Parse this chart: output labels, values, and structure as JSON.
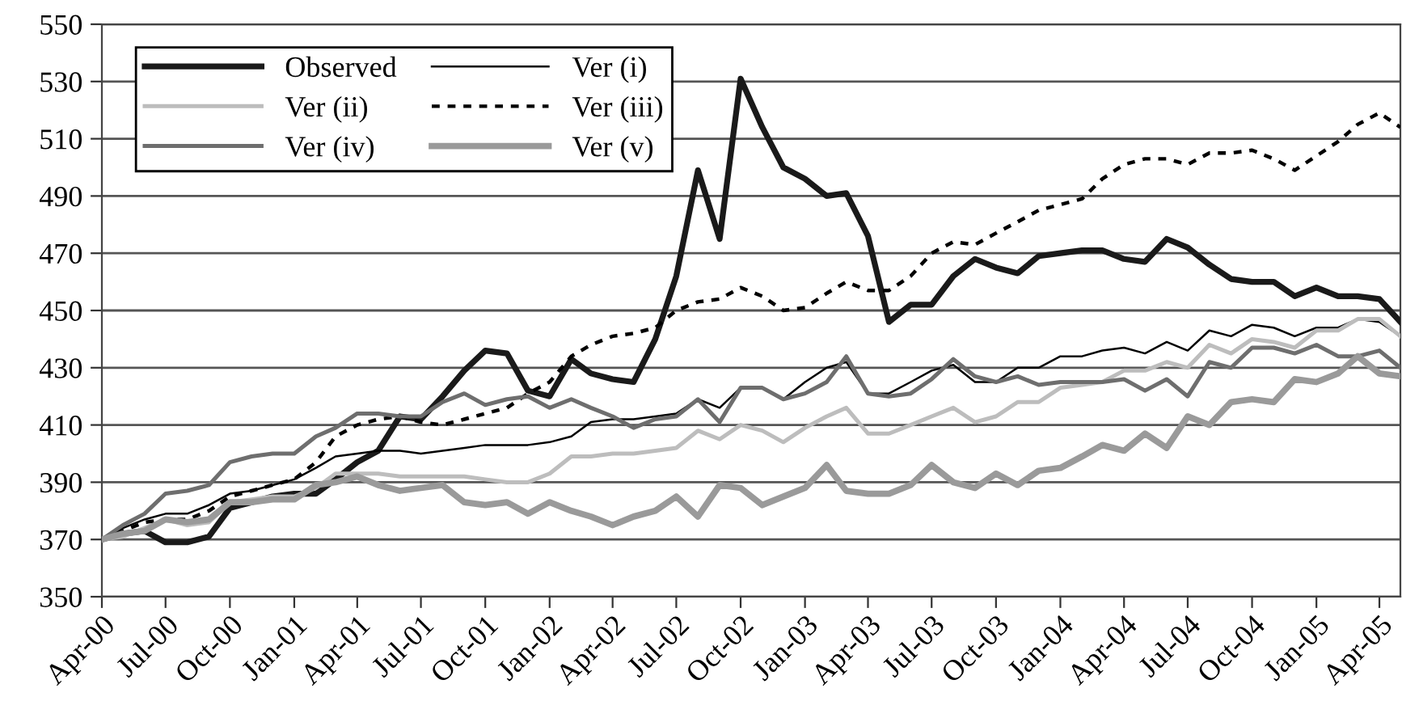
{
  "chart_data": {
    "type": "line",
    "x": [
      "2000-04",
      "2000-05",
      "2000-06",
      "2000-07",
      "2000-08",
      "2000-09",
      "2000-10",
      "2000-11",
      "2000-12",
      "2001-01",
      "2001-02",
      "2001-03",
      "2001-04",
      "2001-05",
      "2001-06",
      "2001-07",
      "2001-08",
      "2001-09",
      "2001-10",
      "2001-11",
      "2001-12",
      "2002-01",
      "2002-02",
      "2002-03",
      "2002-04",
      "2002-05",
      "2002-06",
      "2002-07",
      "2002-08",
      "2002-09",
      "2002-10",
      "2002-11",
      "2002-12",
      "2003-01",
      "2003-02",
      "2003-03",
      "2003-04",
      "2003-05",
      "2003-06",
      "2003-07",
      "2003-08",
      "2003-09",
      "2003-10",
      "2003-11",
      "2003-12",
      "2004-01",
      "2004-02",
      "2004-03",
      "2004-04",
      "2004-05",
      "2004-06",
      "2004-07",
      "2004-08",
      "2004-09",
      "2004-10",
      "2004-11",
      "2004-12",
      "2005-01",
      "2005-02",
      "2005-03",
      "2005-04",
      "2005-05"
    ],
    "series": [
      {
        "name": "Observed",
        "color": "#1a1a1a",
        "line_style": "solid",
        "values": [
          370,
          372,
          373,
          369,
          369,
          371,
          381,
          383,
          385,
          386,
          386,
          391,
          397,
          401,
          413,
          412,
          420,
          429,
          436,
          435,
          422,
          420,
          433,
          428,
          426,
          425,
          440,
          462,
          499,
          475,
          531,
          514,
          500,
          496,
          490,
          491,
          476,
          446,
          452,
          452,
          462,
          468,
          465,
          463,
          469,
          470,
          471,
          471,
          468,
          467,
          475,
          472,
          466,
          461,
          460,
          460,
          455,
          458,
          455,
          455,
          454,
          446
        ]
      },
      {
        "name": "Ver (i)",
        "color": "#000000",
        "line_style": "solid",
        "values": [
          370,
          374,
          377,
          379,
          379,
          382,
          386,
          387,
          389,
          391,
          395,
          399,
          400,
          401,
          401,
          400,
          401,
          402,
          403,
          403,
          403,
          404,
          406,
          411,
          412,
          412,
          413,
          414,
          419,
          416,
          423,
          423,
          419,
          425,
          430,
          432,
          421,
          421,
          425,
          429,
          431,
          425,
          425,
          430,
          430,
          434,
          434,
          436,
          437,
          435,
          439,
          436,
          443,
          441,
          445,
          444,
          441,
          444,
          444,
          447,
          446,
          441
        ]
      },
      {
        "name": "Ver (ii)",
        "color": "#bdbdbd",
        "line_style": "solid",
        "values": [
          370,
          371,
          374,
          377,
          375,
          376,
          383,
          384,
          385,
          385,
          388,
          393,
          393,
          393,
          392,
          392,
          392,
          392,
          391,
          390,
          390,
          393,
          399,
          399,
          400,
          400,
          401,
          402,
          408,
          405,
          410,
          408,
          404,
          409,
          413,
          416,
          407,
          407,
          410,
          413,
          416,
          411,
          413,
          418,
          418,
          423,
          424,
          425,
          429,
          429,
          432,
          430,
          438,
          435,
          440,
          439,
          437,
          443,
          443,
          447,
          447,
          441
        ]
      },
      {
        "name": "Ver (iii)",
        "color": "#000000",
        "line_style": "dashed",
        "values": [
          370,
          373,
          376,
          377,
          377,
          380,
          385,
          387,
          389,
          391,
          397,
          406,
          410,
          412,
          413,
          411,
          410,
          412,
          414,
          416,
          421,
          425,
          434,
          438,
          441,
          442,
          444,
          450,
          453,
          454,
          458,
          455,
          450,
          451,
          456,
          460,
          457,
          457,
          462,
          470,
          474,
          473,
          477,
          481,
          485,
          487,
          489,
          496,
          501,
          503,
          503,
          501,
          505,
          505,
          506,
          503,
          499,
          504,
          509,
          515,
          519,
          514
        ]
      },
      {
        "name": "Ver (iv)",
        "color": "#6e6e6e",
        "line_style": "solid",
        "values": [
          370,
          375,
          379,
          386,
          387,
          389,
          397,
          399,
          400,
          400,
          406,
          409,
          414,
          414,
          413,
          413,
          418,
          421,
          417,
          419,
          420,
          416,
          419,
          416,
          413,
          409,
          412,
          413,
          419,
          411,
          423,
          423,
          419,
          421,
          425,
          434,
          421,
          420,
          421,
          426,
          433,
          427,
          425,
          427,
          424,
          425,
          425,
          425,
          426,
          422,
          426,
          420,
          432,
          430,
          437,
          437,
          435,
          438,
          434,
          434,
          436,
          430
        ]
      },
      {
        "name": "Ver (v)",
        "color": "#9a9a9a",
        "line_style": "solid",
        "values": [
          370,
          372,
          373,
          377,
          376,
          377,
          383,
          383,
          384,
          384,
          389,
          390,
          392,
          389,
          387,
          388,
          389,
          383,
          382,
          383,
          379,
          383,
          380,
          378,
          375,
          378,
          380,
          385,
          378,
          389,
          388,
          382,
          385,
          388,
          396,
          387,
          386,
          386,
          389,
          396,
          390,
          388,
          393,
          389,
          394,
          395,
          399,
          403,
          401,
          407,
          402,
          413,
          410,
          418,
          419,
          418,
          426,
          425,
          428,
          434,
          428,
          427
        ]
      }
    ],
    "xlim": [
      "2000-04",
      "2005-05"
    ],
    "xticks": [
      {
        "value": "2000-04",
        "label": "Apr-00"
      },
      {
        "value": "2000-07",
        "label": "Jul-00"
      },
      {
        "value": "2000-10",
        "label": "Oct-00"
      },
      {
        "value": "2001-01",
        "label": "Jan-01"
      },
      {
        "value": "2001-04",
        "label": "Apr-01"
      },
      {
        "value": "2001-07",
        "label": "Jul-01"
      },
      {
        "value": "2001-10",
        "label": "Oct-01"
      },
      {
        "value": "2002-01",
        "label": "Jan-02"
      },
      {
        "value": "2002-04",
        "label": "Apr-02"
      },
      {
        "value": "2002-07",
        "label": "Jul-02"
      },
      {
        "value": "2002-10",
        "label": "Oct-02"
      },
      {
        "value": "2003-01",
        "label": "Jan-03"
      },
      {
        "value": "2003-04",
        "label": "Apr-03"
      },
      {
        "value": "2003-07",
        "label": "Jul-03"
      },
      {
        "value": "2003-10",
        "label": "Oct-03"
      },
      {
        "value": "2004-01",
        "label": "Jan-04"
      },
      {
        "value": "2004-04",
        "label": "Apr-04"
      },
      {
        "value": "2004-07",
        "label": "Jul-04"
      },
      {
        "value": "2004-10",
        "label": "Oct-04"
      },
      {
        "value": "2005-01",
        "label": "Jan-05"
      },
      {
        "value": "2005-04",
        "label": "Apr-05"
      }
    ],
    "ylim": [
      350,
      550
    ],
    "yticks": [
      350,
      370,
      390,
      410,
      430,
      450,
      470,
      490,
      510,
      530,
      550
    ],
    "grid": "y",
    "legend": "top left",
    "marker": "none"
  }
}
